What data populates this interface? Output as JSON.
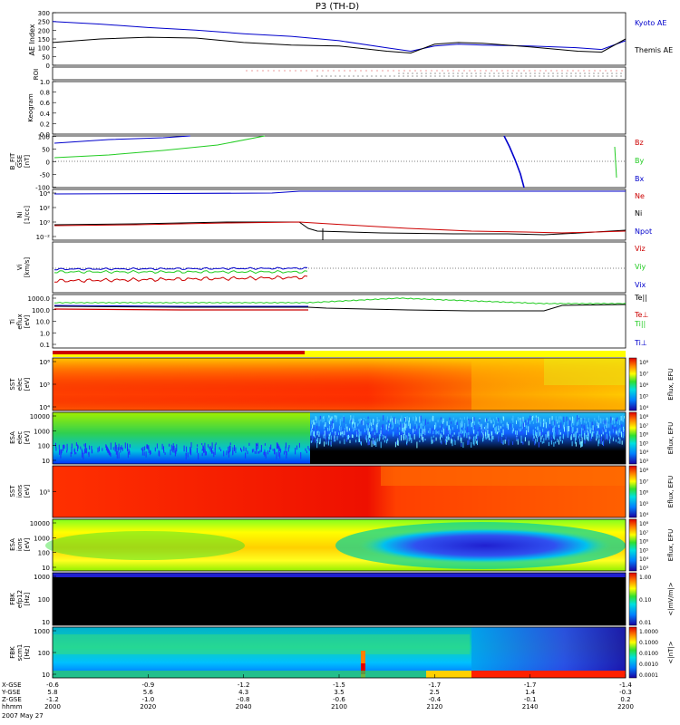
{
  "title": "P3 (TH-D)",
  "date_label": "2007 May 27",
  "colors": {
    "blue": "#0000cc",
    "red": "#cc0000",
    "green": "#22cc22",
    "black": "#000000"
  },
  "time_axis": {
    "row_labels": [
      "X-GSE",
      "Y-GSE",
      "Z-GSE",
      "hhmm"
    ],
    "ticks": [
      "2000",
      "2020",
      "2040",
      "2100",
      "2120",
      "2140",
      "2200"
    ],
    "x_values": [
      "-0.6",
      "-0.9",
      "-1.2",
      "-1.5",
      "-1.7",
      "-1.7",
      "-1.4"
    ],
    "y_values": [
      "5.8",
      "5.6",
      "4.3",
      "3.5",
      "2.5",
      "1.4",
      "-0.3"
    ],
    "z_values": [
      "-1.2",
      "-1.0",
      "-0.8",
      "-0.6",
      "-0.4",
      "-0.1",
      "0.2"
    ]
  },
  "chart_data": [
    {
      "type": "line",
      "panel": "ae",
      "ylabel": "AE Index",
      "ylim": [
        0,
        300
      ],
      "ticks": [
        "300",
        "250",
        "200",
        "150",
        "100",
        "50",
        "0"
      ],
      "x": [
        "2000",
        "2010",
        "2020",
        "2030",
        "2040",
        "2050",
        "2100",
        "2110",
        "2115",
        "2120",
        "2125",
        "2130",
        "2140",
        "2150",
        "2155",
        "2200"
      ],
      "series": [
        {
          "name": "Kyoto AE",
          "values": [
            250,
            235,
            215,
            200,
            180,
            165,
            140,
            100,
            80,
            110,
            120,
            115,
            110,
            100,
            90,
            140
          ]
        },
        {
          "name": "Themis AE",
          "values": [
            130,
            150,
            160,
            155,
            130,
            115,
            110,
            80,
            70,
            120,
            130,
            125,
            105,
            80,
            75,
            150
          ]
        }
      ]
    },
    {
      "type": "line",
      "panel": "roi",
      "ylabel": "ROI"
    },
    {
      "type": "line",
      "panel": "keogram",
      "ylabel": "Keogram",
      "ylim": [
        0,
        1
      ],
      "ticks": [
        "1.0",
        "0.8",
        "0.6",
        "0.4",
        "0.2",
        "0.0"
      ]
    },
    {
      "type": "line",
      "panel": "bfield",
      "ylabel_lines": [
        "B_FIT",
        "GSE",
        "[nT]"
      ],
      "ylim": [
        -100,
        100
      ],
      "ticks": [
        "100",
        "50",
        "0",
        "-50",
        "-100"
      ],
      "series": [
        {
          "name": "Bz",
          "values": []
        },
        {
          "name": "By",
          "values": [
            10,
            40,
            75,
            100
          ]
        },
        {
          "name": "Bx",
          "values": [
            70,
            85,
            100
          ]
        }
      ]
    },
    {
      "type": "line",
      "panel": "density",
      "ylabel_lines": [
        "Ni",
        "[1/cc]"
      ],
      "ticks": [
        "10⁴",
        "10²",
        "10⁰",
        "10⁻²"
      ],
      "series": [
        {
          "name": "Ne",
          "values": []
        },
        {
          "name": "Ni",
          "values": []
        },
        {
          "name": "Npot",
          "values": []
        }
      ]
    },
    {
      "type": "line",
      "panel": "velocity",
      "ylabel_lines": [
        "Vi",
        "[km/s]"
      ],
      "series": [
        {
          "name": "Viz",
          "values": []
        },
        {
          "name": "Viy",
          "values": []
        },
        {
          "name": "Vix",
          "values": []
        }
      ]
    },
    {
      "type": "line",
      "panel": "temperature",
      "ylabel_lines": [
        "Ti",
        "eflux",
        "[eV]"
      ],
      "ticks": [
        "1000.0",
        "100.0",
        "10.0",
        "1.0",
        "0.1"
      ],
      "series": [
        {
          "name": "Te||",
          "values": []
        },
        {
          "name": "Te⊥",
          "values": []
        },
        {
          "name": "Ti||",
          "values": []
        },
        {
          "name": "Ti⊥",
          "values": []
        }
      ]
    },
    {
      "type": "heatmap",
      "panel": "sst_e",
      "ylabel_lines": [
        "SST",
        "elec",
        "[eV]"
      ],
      "ticks": [
        "10⁶",
        "10⁵",
        "10⁴"
      ],
      "cbar_label": "Eflux, EFU",
      "cbar_ticks": [
        "10⁸",
        "10⁷",
        "10⁶",
        "10⁵",
        "10⁴"
      ]
    },
    {
      "type": "heatmap",
      "panel": "esa_e",
      "ylabel_lines": [
        "ESA",
        "elec",
        "[eV]"
      ],
      "ticks": [
        "10000",
        "1000",
        "100",
        "10"
      ],
      "cbar_label": "Eflux, EFU",
      "cbar_ticks": [
        "10⁸",
        "10⁷",
        "10⁶",
        "10⁵",
        "10⁴",
        "10³"
      ]
    },
    {
      "type": "heatmap",
      "panel": "sst_i",
      "ylabel_lines": [
        "SST",
        "ions",
        "[eV]"
      ],
      "ticks": [
        "10⁵"
      ],
      "cbar_label": "Eflux, EFU",
      "cbar_ticks": [
        "10⁸",
        "10⁷",
        "10⁶",
        "10⁵",
        "10⁴"
      ]
    },
    {
      "type": "heatmap",
      "panel": "esa_i",
      "ylabel_lines": [
        "ESA",
        "ions",
        "[eV]"
      ],
      "ticks": [
        "10000",
        "1000",
        "100",
        "10"
      ],
      "cbar_label": "Eflux, EFU",
      "cbar_ticks": [
        "10⁸",
        "10⁷",
        "10⁶",
        "10⁵",
        "10⁴",
        "10³"
      ]
    },
    {
      "type": "heatmap",
      "panel": "fbk_e",
      "ylabel_lines": [
        "FBK",
        "efp12",
        "[Hz]"
      ],
      "ticks": [
        "1000",
        "100",
        "10"
      ],
      "cbar_label": "<|mV/m|>",
      "cbar_ticks": [
        "1.00",
        "0.10",
        "0.01"
      ]
    },
    {
      "type": "heatmap",
      "panel": "fbk_b",
      "ylabel_lines": [
        "FBK",
        "scm1",
        "[Hz]"
      ],
      "ticks": [
        "1000",
        "100",
        "10"
      ],
      "cbar_label": "<|nT|>",
      "cbar_ticks": [
        "1.0000",
        "0.1000",
        "0.0100",
        "0.0010",
        "0.0001"
      ]
    }
  ]
}
